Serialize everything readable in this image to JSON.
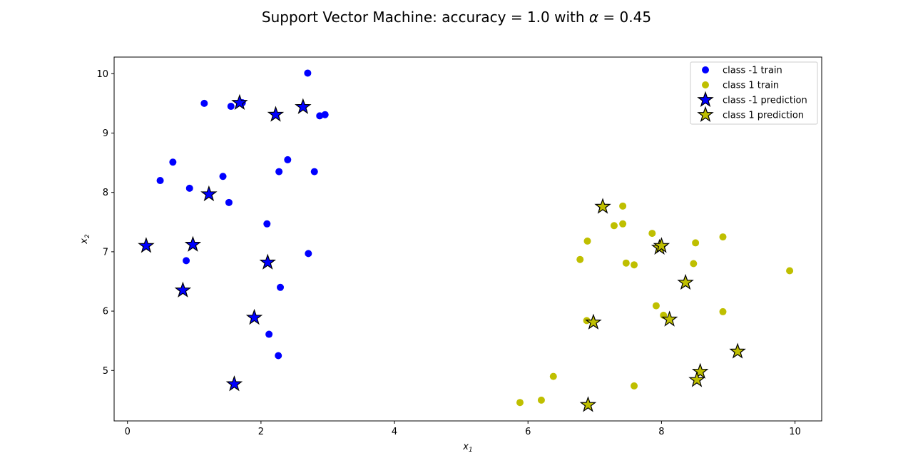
{
  "chart_data": {
    "type": "scatter",
    "title_prefix": "Support Vector Machine: accuracy = 1.0 with ",
    "title_symbol": "α",
    "title_suffix": " = 0.45",
    "xlabel": "x",
    "xlabel_sub": "1",
    "ylabel": "x",
    "ylabel_sub": "2",
    "xlim": [
      -0.2,
      10.4
    ],
    "ylim": [
      4.15,
      10.28
    ],
    "xticks": [
      0,
      2,
      4,
      6,
      8,
      10
    ],
    "yticks": [
      5,
      6,
      7,
      8,
      9,
      10
    ],
    "grid": false,
    "legend_position": "top-right",
    "colors": {
      "class_neg": "#0000ff",
      "class_pos": "#bfbf00"
    },
    "series": [
      {
        "name": "class -1 train",
        "marker": "circle",
        "color": "#0000ff",
        "points": [
          [
            2.7,
            10.01
          ],
          [
            1.15,
            9.5
          ],
          [
            1.55,
            9.45
          ],
          [
            1.72,
            9.51
          ],
          [
            2.88,
            9.29
          ],
          [
            2.96,
            9.31
          ],
          [
            0.68,
            8.51
          ],
          [
            0.49,
            8.2
          ],
          [
            0.93,
            8.07
          ],
          [
            1.43,
            8.27
          ],
          [
            2.27,
            8.35
          ],
          [
            2.4,
            8.55
          ],
          [
            2.8,
            8.35
          ],
          [
            1.52,
            7.83
          ],
          [
            2.09,
            7.47
          ],
          [
            2.71,
            6.97
          ],
          [
            0.88,
            6.85
          ],
          [
            2.29,
            6.4
          ],
          [
            2.12,
            5.61
          ],
          [
            2.26,
            5.25
          ]
        ]
      },
      {
        "name": "class 1 train",
        "marker": "circle",
        "color": "#bfbf00",
        "points": [
          [
            7.42,
            7.77
          ],
          [
            7.29,
            7.44
          ],
          [
            7.42,
            7.47
          ],
          [
            7.86,
            7.31
          ],
          [
            6.89,
            7.18
          ],
          [
            8.92,
            7.25
          ],
          [
            8.51,
            7.15
          ],
          [
            6.78,
            6.87
          ],
          [
            7.47,
            6.81
          ],
          [
            7.59,
            6.78
          ],
          [
            8.48,
            6.8
          ],
          [
            9.92,
            6.68
          ],
          [
            7.92,
            6.09
          ],
          [
            8.03,
            5.93
          ],
          [
            8.92,
            5.99
          ],
          [
            6.88,
            5.84
          ],
          [
            6.38,
            4.9
          ],
          [
            5.88,
            4.46
          ],
          [
            6.2,
            4.5
          ],
          [
            7.59,
            4.74
          ]
        ]
      },
      {
        "name": "class -1 prediction",
        "marker": "star",
        "color": "#0000ff",
        "points": [
          [
            1.68,
            9.51
          ],
          [
            2.22,
            9.31
          ],
          [
            2.63,
            9.44
          ],
          [
            1.22,
            7.97
          ],
          [
            0.28,
            7.1
          ],
          [
            0.98,
            7.12
          ],
          [
            2.1,
            6.82
          ],
          [
            0.83,
            6.35
          ],
          [
            1.9,
            5.89
          ],
          [
            1.6,
            4.77
          ]
        ]
      },
      {
        "name": "class 1 prediction",
        "marker": "star",
        "color": "#bfbf00",
        "points": [
          [
            7.12,
            7.76
          ],
          [
            7.97,
            7.07
          ],
          [
            8.0,
            7.1
          ],
          [
            8.36,
            6.48
          ],
          [
            6.98,
            5.81
          ],
          [
            8.12,
            5.86
          ],
          [
            9.14,
            5.32
          ],
          [
            8.58,
            4.98
          ],
          [
            8.53,
            4.84
          ],
          [
            6.9,
            4.42
          ]
        ]
      }
    ]
  }
}
